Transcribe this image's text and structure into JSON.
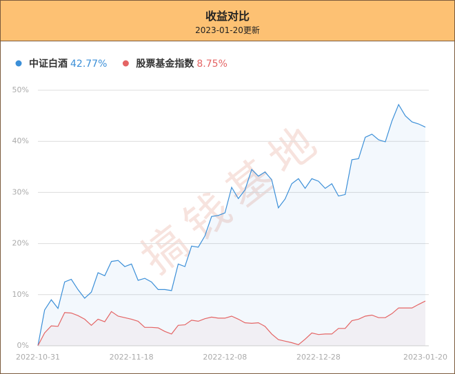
{
  "chart_data": {
    "type": "line",
    "title": "收益对比",
    "subtitle": "2023-01-20更新",
    "watermark": "搞钱基地",
    "categories": [
      "2022-10-31",
      null,
      null,
      null,
      null,
      null,
      null,
      null,
      null,
      null,
      null,
      null,
      null,
      null,
      "2022-11-18",
      null,
      null,
      null,
      null,
      null,
      null,
      null,
      null,
      null,
      null,
      null,
      null,
      null,
      "2022-12-08",
      null,
      null,
      null,
      null,
      null,
      null,
      null,
      null,
      null,
      null,
      null,
      null,
      null,
      "2022-12-28",
      null,
      null,
      null,
      null,
      null,
      null,
      null,
      null,
      null,
      null,
      null,
      null,
      null,
      null,
      null,
      "2023-01-20"
    ],
    "series": [
      {
        "name": "中证白酒",
        "value_label": "42.77%",
        "color": "#3b8fd8",
        "values": [
          0,
          7.0,
          9.0,
          7.3,
          12.5,
          13.0,
          11.0,
          9.3,
          10.5,
          14.3,
          13.7,
          16.5,
          16.7,
          15.5,
          16.0,
          12.8,
          13.2,
          12.5,
          11.0,
          11.0,
          10.8,
          16.0,
          15.5,
          19.5,
          19.3,
          21.5,
          25.3,
          25.5,
          26.0,
          31.0,
          28.8,
          30.5,
          34.5,
          33.2,
          34.0,
          32.5,
          27.0,
          28.7,
          31.7,
          32.7,
          30.8,
          32.7,
          32.2,
          30.8,
          31.7,
          29.3,
          29.6,
          36.4,
          36.6,
          40.8,
          41.4,
          40.3,
          39.9,
          44.0,
          47.2,
          45.0,
          43.8,
          43.4,
          42.77
        ]
      },
      {
        "name": "股票基金指数",
        "value_label": "8.75%",
        "color": "#e46464",
        "values": [
          0,
          2.5,
          3.9,
          3.8,
          6.5,
          6.4,
          5.9,
          5.2,
          4.0,
          5.2,
          4.7,
          6.7,
          5.8,
          5.5,
          5.2,
          4.8,
          3.6,
          3.6,
          3.5,
          2.8,
          2.3,
          4.0,
          4.1,
          5.0,
          4.8,
          5.3,
          5.6,
          5.4,
          5.4,
          5.8,
          5.2,
          4.5,
          4.4,
          4.5,
          3.8,
          2.3,
          1.2,
          0.9,
          0.6,
          0.2,
          1.3,
          2.5,
          2.2,
          2.3,
          2.3,
          3.4,
          3.4,
          4.9,
          5.2,
          5.8,
          6.0,
          5.5,
          5.5,
          6.3,
          7.4,
          7.4,
          7.4,
          8.1,
          8.75
        ]
      }
    ],
    "ylim": [
      0,
      50
    ],
    "yticks": [
      {
        "value": 0,
        "label": "0%"
      },
      {
        "value": 10,
        "label": "10%"
      },
      {
        "value": 20,
        "label": "20%"
      },
      {
        "value": 30,
        "label": "30%"
      },
      {
        "value": 40,
        "label": "40%"
      },
      {
        "value": 50,
        "label": "50%"
      }
    ],
    "grid": true
  }
}
